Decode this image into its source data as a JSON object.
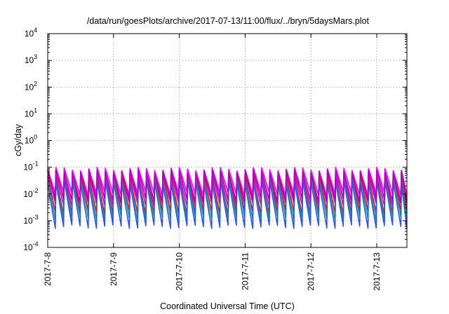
{
  "chart_data": {
    "type": "line",
    "title": "/data/run/goesPlots/archive/2017-07-13/11:00/flux/../bryn/5daysMars.plot",
    "xlabel": "Coordinated Universal Time (UTC)",
    "ylabel": "cGy/day",
    "yscale": "log",
    "ylim": [
      0.0001,
      10000
    ],
    "xlim": [
      "2017-07-08 00:00",
      "2017-07-13 11:00"
    ],
    "x_ticks": [
      "2017-7-8",
      "2017-7-9",
      "2017-7-10",
      "2017-7-11",
      "2017-7-12",
      "2017-7-13"
    ],
    "y_ticks": [
      {
        "value": 0.0001,
        "base": "10",
        "exp": "-4"
      },
      {
        "value": 0.001,
        "base": "10",
        "exp": "-3"
      },
      {
        "value": 0.01,
        "base": "10",
        "exp": "-2"
      },
      {
        "value": 0.1,
        "base": "10",
        "exp": "-1"
      },
      {
        "value": 1,
        "base": "10",
        "exp": "0"
      },
      {
        "value": 10,
        "base": "10",
        "exp": "1"
      },
      {
        "value": 100,
        "base": "10",
        "exp": "2"
      },
      {
        "value": 1000,
        "base": "10",
        "exp": "3"
      },
      {
        "value": 10000,
        "base": "10",
        "exp": "4"
      }
    ],
    "grid": true,
    "legend": "none",
    "pattern": {
      "cycles_per_day": 8,
      "peak_values": [
        0.085,
        0.07,
        0.055,
        0.045,
        0.035,
        0.028
      ],
      "trough_values": [
        0.01,
        0.006,
        0.004,
        0.002,
        0.0012,
        0.0006
      ]
    },
    "series_colors": [
      "#ff00ff",
      "#ee00ee",
      "#cc00cc",
      "#ff0000",
      "#00aa88",
      "#2255ff",
      "#ff00ff",
      "#aa00cc"
    ]
  }
}
